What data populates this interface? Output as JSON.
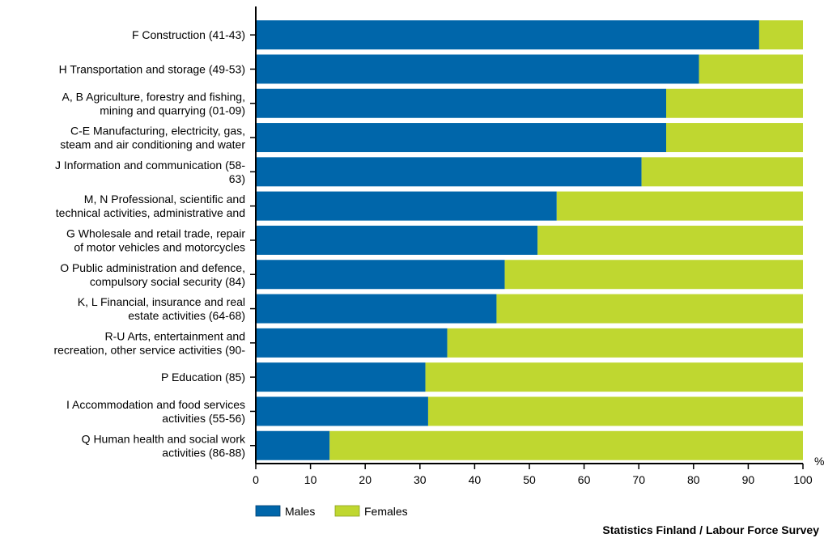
{
  "chart_data": {
    "type": "bar",
    "orientation": "horizontal",
    "stacked": true,
    "categories": [
      [
        "F Construction (41-43)"
      ],
      [
        "H Transportation and storage (49-53)"
      ],
      [
        "A, B Agriculture, forestry and fishing,",
        "mining and quarrying (01-09)"
      ],
      [
        "C-E Manufacturing, electricity, gas,",
        "steam and air conditioning and water"
      ],
      [
        "J Information and communication (58-",
        "63)"
      ],
      [
        "M, N Professional, scientific and",
        "technical activities, administrative and"
      ],
      [
        "G Wholesale and retail trade, repair",
        "of motor vehicles and motorcycles"
      ],
      [
        "O Public administration and defence,",
        "compulsory social security (84)"
      ],
      [
        "K, L Financial, insurance and real",
        "estate activities (64-68)"
      ],
      [
        "R-U Arts, entertainment and",
        "recreation, other service activities (90-"
      ],
      [
        "P Education (85)"
      ],
      [
        "I Accommodation and food services",
        "activities (55-56)"
      ],
      [
        "Q Human health and social work",
        "activities (86-88)"
      ]
    ],
    "series": [
      {
        "name": "Males",
        "color": "#0066aa",
        "values": [
          92,
          81,
          75,
          75,
          70.5,
          55,
          51.5,
          45.5,
          44,
          35,
          31,
          31.5,
          13.5
        ]
      },
      {
        "name": "Females",
        "color": "#bfd730",
        "values": [
          8,
          19,
          25,
          25,
          29.5,
          45,
          48.5,
          54.5,
          56,
          65,
          69,
          68.5,
          86.5
        ]
      }
    ],
    "xlim": [
      0,
      100
    ],
    "xticks": [
      0,
      10,
      20,
      30,
      40,
      50,
      60,
      70,
      80,
      90,
      100
    ],
    "x_unit": "%",
    "legend_position": "bottom-left",
    "grid": false
  },
  "source": "Statistics Finland / Labour Force Survey"
}
